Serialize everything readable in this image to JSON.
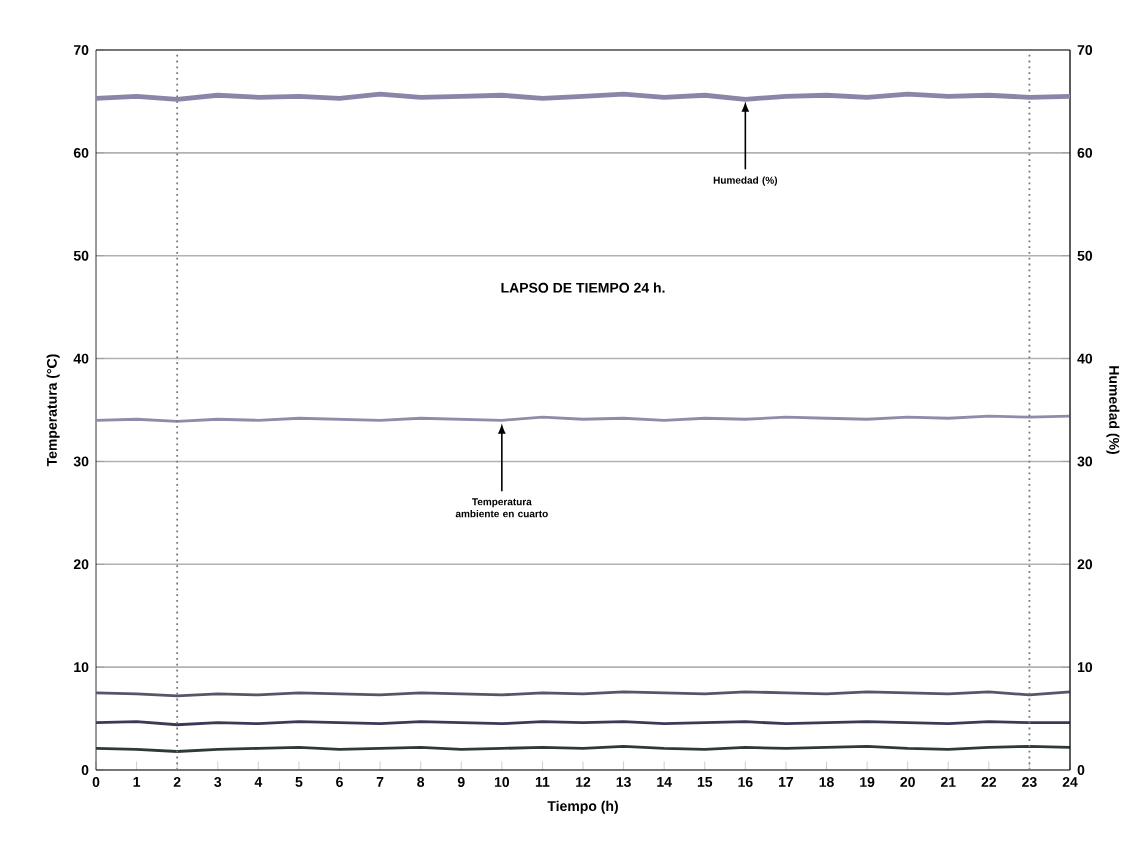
{
  "chart_data": {
    "type": "line",
    "xlabel": "Tiempo (h)",
    "ylabel": "Temperatura (°C)",
    "y2label": "Humedad (%)",
    "x": [
      0,
      1,
      2,
      3,
      4,
      5,
      6,
      7,
      8,
      9,
      10,
      11,
      12,
      13,
      14,
      15,
      16,
      17,
      18,
      19,
      20,
      21,
      22,
      23,
      24
    ],
    "series": [
      {
        "color": "#8a86a8",
        "axis": "y2",
        "values": [
          65.3,
          65.5,
          65.2,
          65.6,
          65.4,
          65.5,
          65.3,
          65.7,
          65.4,
          65.5,
          65.6,
          65.3,
          65.5,
          65.7,
          65.4,
          65.6,
          65.2,
          65.5,
          65.6,
          65.4,
          65.7,
          65.5,
          65.6,
          65.4,
          65.5
        ]
      },
      {
        "color": "#8f8caa",
        "values": [
          34.0,
          34.1,
          33.9,
          34.1,
          34.0,
          34.2,
          34.1,
          34.0,
          34.2,
          34.1,
          34.0,
          34.3,
          34.1,
          34.2,
          34.0,
          34.2,
          34.1,
          34.3,
          34.2,
          34.1,
          34.3,
          34.2,
          34.4,
          34.3,
          34.4
        ]
      },
      {
        "color": "#55566a",
        "values": [
          7.5,
          7.4,
          7.2,
          7.4,
          7.3,
          7.5,
          7.4,
          7.3,
          7.5,
          7.4,
          7.3,
          7.5,
          7.4,
          7.6,
          7.5,
          7.4,
          7.6,
          7.5,
          7.4,
          7.6,
          7.5,
          7.4,
          7.6,
          7.3,
          7.6
        ]
      },
      {
        "color": "#3a3a58",
        "values": [
          4.6,
          4.7,
          4.4,
          4.6,
          4.5,
          4.7,
          4.6,
          4.5,
          4.7,
          4.6,
          4.5,
          4.7,
          4.6,
          4.7,
          4.5,
          4.6,
          4.7,
          4.5,
          4.6,
          4.7,
          4.6,
          4.5,
          4.7,
          4.6,
          4.6
        ]
      },
      {
        "color": "#2f3a38",
        "values": [
          2.1,
          2.0,
          1.8,
          2.0,
          2.1,
          2.2,
          2.0,
          2.1,
          2.2,
          2.0,
          2.1,
          2.2,
          2.1,
          2.3,
          2.1,
          2.0,
          2.2,
          2.1,
          2.2,
          2.3,
          2.1,
          2.0,
          2.2,
          2.3,
          2.2
        ]
      }
    ],
    "xlim": [
      0,
      24
    ],
    "xticks": [
      0,
      1,
      2,
      3,
      4,
      5,
      6,
      7,
      8,
      9,
      10,
      11,
      12,
      13,
      14,
      15,
      16,
      17,
      18,
      19,
      20,
      21,
      22,
      23,
      24
    ],
    "ylim": [
      0,
      70
    ],
    "yticks": [
      0,
      10,
      20,
      30,
      40,
      50,
      60,
      70
    ],
    "y2lim": [
      0,
      70
    ],
    "y2ticks": [
      0,
      10,
      20,
      30,
      40,
      50,
      60,
      70
    ],
    "grid": "y",
    "line_style": "solid",
    "marker": "none",
    "ref_lines": [
      {
        "axis": "x",
        "value": 2,
        "line_style": "dotted",
        "color": "#777777"
      },
      {
        "axis": "x",
        "value": 23,
        "line_style": "dotted",
        "color": "#777777"
      }
    ],
    "annotations": [
      "LAPSO DE TIEMPO  24 h.",
      {
        "text": "Humedad (%)",
        "x": 16,
        "y": 65.4
      },
      {
        "text": "Temperatura ambiente en cuarto",
        "x": 10,
        "y": 34.1
      }
    ]
  }
}
